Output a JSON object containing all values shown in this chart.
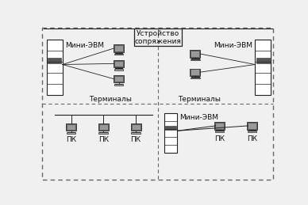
{
  "title_box": "Устройство\nсопряжения",
  "top_left_label": "Мини-ЭВМ",
  "top_right_label": "Мини-ЭВМ",
  "bottom_right_label": "Мини-ЭВМ",
  "terminals_label_tl": "Терминалы",
  "terminals_label_tr": "Терминалы",
  "pk_label": "ПК",
  "background": "#f0f0f0",
  "box_facecolor": "#eeeeee",
  "dashed_color": "#666666",
  "line_color": "#222222",
  "text_color": "#111111",
  "font_size": 6.5,
  "server_color": "#ffffff",
  "slot_color": "#555555",
  "pc_color": "#bbbbbb",
  "pc_screen_color": "#999999"
}
